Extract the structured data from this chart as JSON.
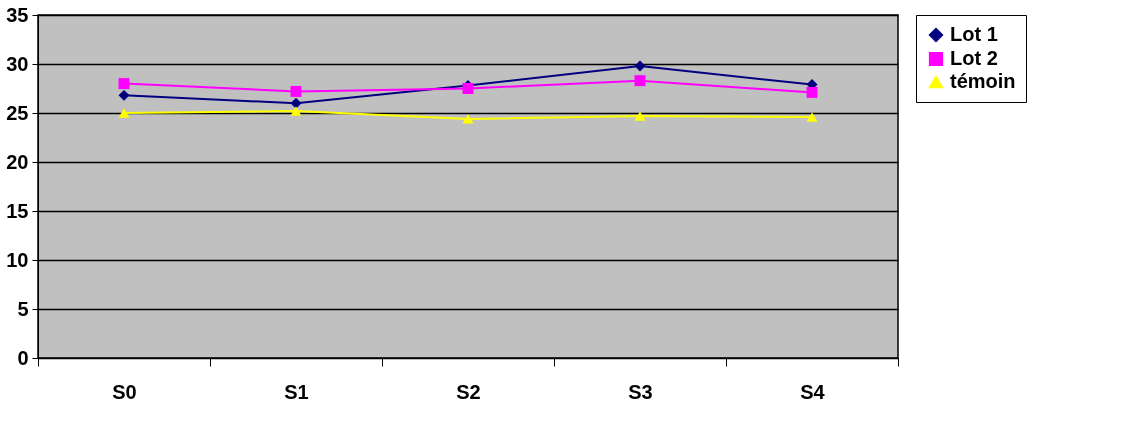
{
  "chart_data": {
    "type": "line",
    "categories": [
      "S0",
      "S1",
      "S2",
      "S3",
      "S4"
    ],
    "series": [
      {
        "name": "Lot 1",
        "color": "#000080",
        "marker": "diamond",
        "values": [
          26.8,
          26.0,
          27.8,
          29.8,
          27.9
        ]
      },
      {
        "name": "Lot 2",
        "color": "#ff00ff",
        "marker": "square",
        "values": [
          28.0,
          27.2,
          27.5,
          28.3,
          27.1
        ]
      },
      {
        "name": "témoin",
        "color": "#ffff00",
        "marker": "triangle",
        "values": [
          25.0,
          25.2,
          24.4,
          24.7,
          24.6
        ]
      }
    ],
    "ylim": [
      0,
      35
    ],
    "yticks": [
      0,
      5,
      10,
      15,
      20,
      25,
      30,
      35
    ],
    "grid": "y",
    "legend": "right",
    "line_style": "solid"
  }
}
